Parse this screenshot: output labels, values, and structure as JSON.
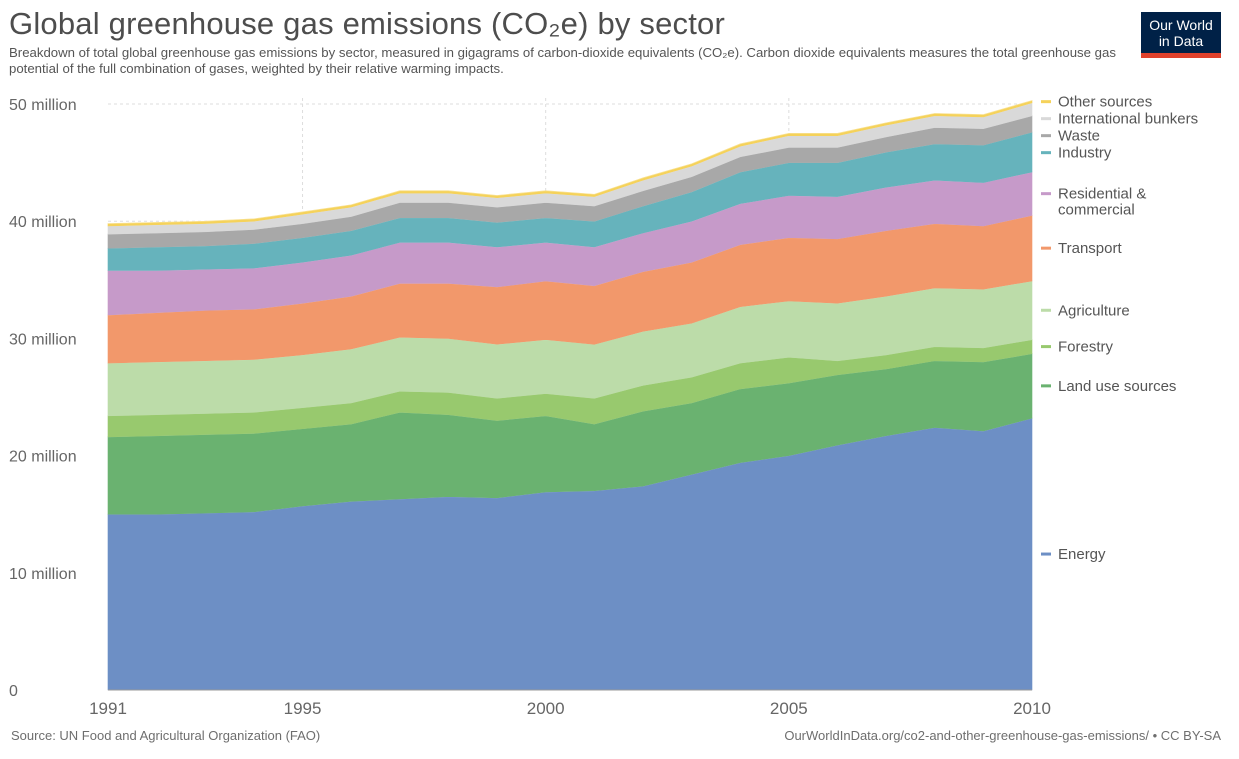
{
  "header": {
    "title": "Global greenhouse gas emissions (CO₂e) by sector",
    "subtitle": "Breakdown of total global greenhouse gas emissions by sector, measured in gigagrams of carbon-dioxide equivalents (CO₂e). Carbon dioxide equivalents measures the total greenhouse gas potential of the full combination of gases, weighted by their relative warming impacts."
  },
  "logo": {
    "line1": "Our World",
    "line2": "in Data",
    "bg_color": "#002147",
    "accent_color": "#e0412c"
  },
  "footer": {
    "source": "Source: UN Food and Agricultural Organization (FAO)",
    "link": "OurWorldInData.org/co2-and-other-greenhouse-gas-emissions/ • CC BY-SA"
  },
  "chart_data": {
    "type": "area",
    "stacked": true,
    "title": "Global greenhouse gas emissions (CO₂e) by sector",
    "xlabel": "",
    "ylabel": "",
    "x": [
      1991,
      1992,
      1993,
      1994,
      1995,
      1996,
      1997,
      1998,
      1999,
      2000,
      2001,
      2002,
      2003,
      2004,
      2005,
      2006,
      2007,
      2008,
      2009,
      2010
    ],
    "xlim": [
      1991,
      2010
    ],
    "ylim": [
      0,
      50000000
    ],
    "x_ticks": [
      1991,
      1995,
      2000,
      2005,
      2010
    ],
    "y_ticks": [
      0,
      10000000,
      20000000,
      30000000,
      40000000,
      50000000
    ],
    "y_tick_labels": [
      "0",
      "10 million",
      "20 million",
      "30 million",
      "40 million",
      "50 million"
    ],
    "grid": true,
    "legend_position": "right",
    "series": [
      {
        "name": "Energy",
        "color": "#6d8fc5",
        "label_lines": [
          "Energy"
        ],
        "values": [
          15000000,
          15000000,
          15100000,
          15200000,
          15700000,
          16100000,
          16300000,
          16500000,
          16400000,
          16900000,
          17000000,
          17400000,
          18400000,
          19400000,
          20000000,
          20900000,
          21700000,
          22400000,
          22100000,
          23200000
        ]
      },
      {
        "name": "Land use sources",
        "color": "#6ab270",
        "label_lines": [
          "Land use sources"
        ],
        "values": [
          6600000,
          6700000,
          6700000,
          6700000,
          6600000,
          6600000,
          7400000,
          7000000,
          6600000,
          6500000,
          5700000,
          6400000,
          6100000,
          6300000,
          6200000,
          6000000,
          5700000,
          5700000,
          5900000,
          5500000
        ]
      },
      {
        "name": "Forestry",
        "color": "#98c96e",
        "label_lines": [
          "Forestry"
        ],
        "values": [
          1800000,
          1800000,
          1800000,
          1800000,
          1800000,
          1800000,
          1800000,
          1900000,
          1900000,
          1900000,
          2200000,
          2200000,
          2200000,
          2200000,
          2200000,
          1200000,
          1200000,
          1200000,
          1200000,
          1200000
        ]
      },
      {
        "name": "Agriculture",
        "color": "#bcdca9",
        "label_lines": [
          "Agriculture"
        ],
        "values": [
          4500000,
          4500000,
          4500000,
          4500000,
          4500000,
          4600000,
          4600000,
          4600000,
          4600000,
          4600000,
          4600000,
          4600000,
          4600000,
          4800000,
          4800000,
          4900000,
          5000000,
          5000000,
          5000000,
          5000000
        ]
      },
      {
        "name": "Transport",
        "color": "#f2986b",
        "label_lines": [
          "Transport"
        ],
        "values": [
          4100000,
          4200000,
          4300000,
          4300000,
          4400000,
          4500000,
          4600000,
          4700000,
          4900000,
          5000000,
          5000000,
          5100000,
          5200000,
          5300000,
          5400000,
          5500000,
          5600000,
          5500000,
          5400000,
          5600000
        ]
      },
      {
        "name": "Residential & commercial",
        "color": "#c69ac9",
        "label_lines": [
          "Residential &",
          "commercial"
        ],
        "values": [
          3800000,
          3600000,
          3500000,
          3500000,
          3500000,
          3500000,
          3500000,
          3500000,
          3400000,
          3300000,
          3300000,
          3300000,
          3500000,
          3500000,
          3600000,
          3600000,
          3700000,
          3700000,
          3700000,
          3700000
        ]
      },
      {
        "name": "Industry",
        "color": "#66b3bc",
        "label_lines": [
          "Industry"
        ],
        "values": [
          1900000,
          2000000,
          2000000,
          2100000,
          2100000,
          2100000,
          2100000,
          2100000,
          2100000,
          2100000,
          2200000,
          2300000,
          2500000,
          2700000,
          2800000,
          2900000,
          3000000,
          3100000,
          3200000,
          3400000
        ]
      },
      {
        "name": "Waste",
        "color": "#a8a8a8",
        "label_lines": [
          "Waste"
        ],
        "values": [
          1200000,
          1200000,
          1200000,
          1200000,
          1200000,
          1200000,
          1300000,
          1300000,
          1300000,
          1300000,
          1300000,
          1300000,
          1300000,
          1300000,
          1300000,
          1300000,
          1300000,
          1400000,
          1400000,
          1400000
        ]
      },
      {
        "name": "International bunkers",
        "color": "#d9d9d9",
        "label_lines": [
          "International bunkers"
        ],
        "values": [
          700000,
          700000,
          700000,
          700000,
          800000,
          800000,
          800000,
          800000,
          800000,
          800000,
          800000,
          900000,
          900000,
          900000,
          1000000,
          1000000,
          1000000,
          1000000,
          1000000,
          1100000
        ]
      },
      {
        "name": "Other sources",
        "color": "#f5d25a",
        "label_lines": [
          "Other sources"
        ],
        "values": [
          200000,
          200000,
          200000,
          200000,
          200000,
          200000,
          200000,
          200000,
          200000,
          200000,
          200000,
          200000,
          200000,
          200000,
          200000,
          200000,
          200000,
          200000,
          200000,
          200000
        ]
      }
    ]
  }
}
